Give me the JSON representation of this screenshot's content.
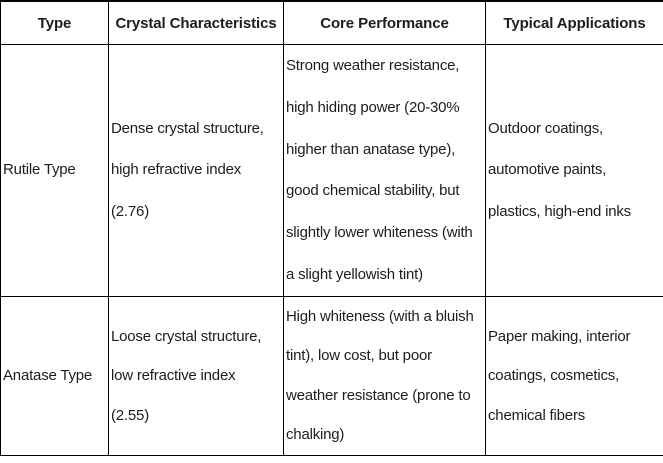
{
  "table": {
    "headers": [
      "Type",
      "Crystal Characteristics",
      "Core Performance",
      "Typical Applications"
    ],
    "rows": [
      {
        "type": "Rutile Type",
        "crystal_characteristics": "Dense crystal structure,\nhigh refractive index\n(2.76)",
        "core_performance": "Strong weather resistance,\nhigh hiding power (20-30%\nhigher than anatase type),\ngood chemical stability, but\nslightly lower whiteness (with\na slight yellowish tint)",
        "typical_applications": "Outdoor coatings,\nautomotive paints,\nplastics, high-end inks"
      },
      {
        "type": "Anatase Type",
        "crystal_characteristics": "Loose crystal structure,\nlow refractive index\n(2.55)",
        "core_performance": "High whiteness (with a bluish\ntint), low cost, but poor\nweather resistance (prone to\nchalking)",
        "typical_applications": "Paper making, interior\ncoatings, cosmetics,\nchemical fibers"
      }
    ],
    "colors": {
      "text": "#1d1d1d",
      "border": "#000000",
      "background": "#ffffff"
    }
  }
}
